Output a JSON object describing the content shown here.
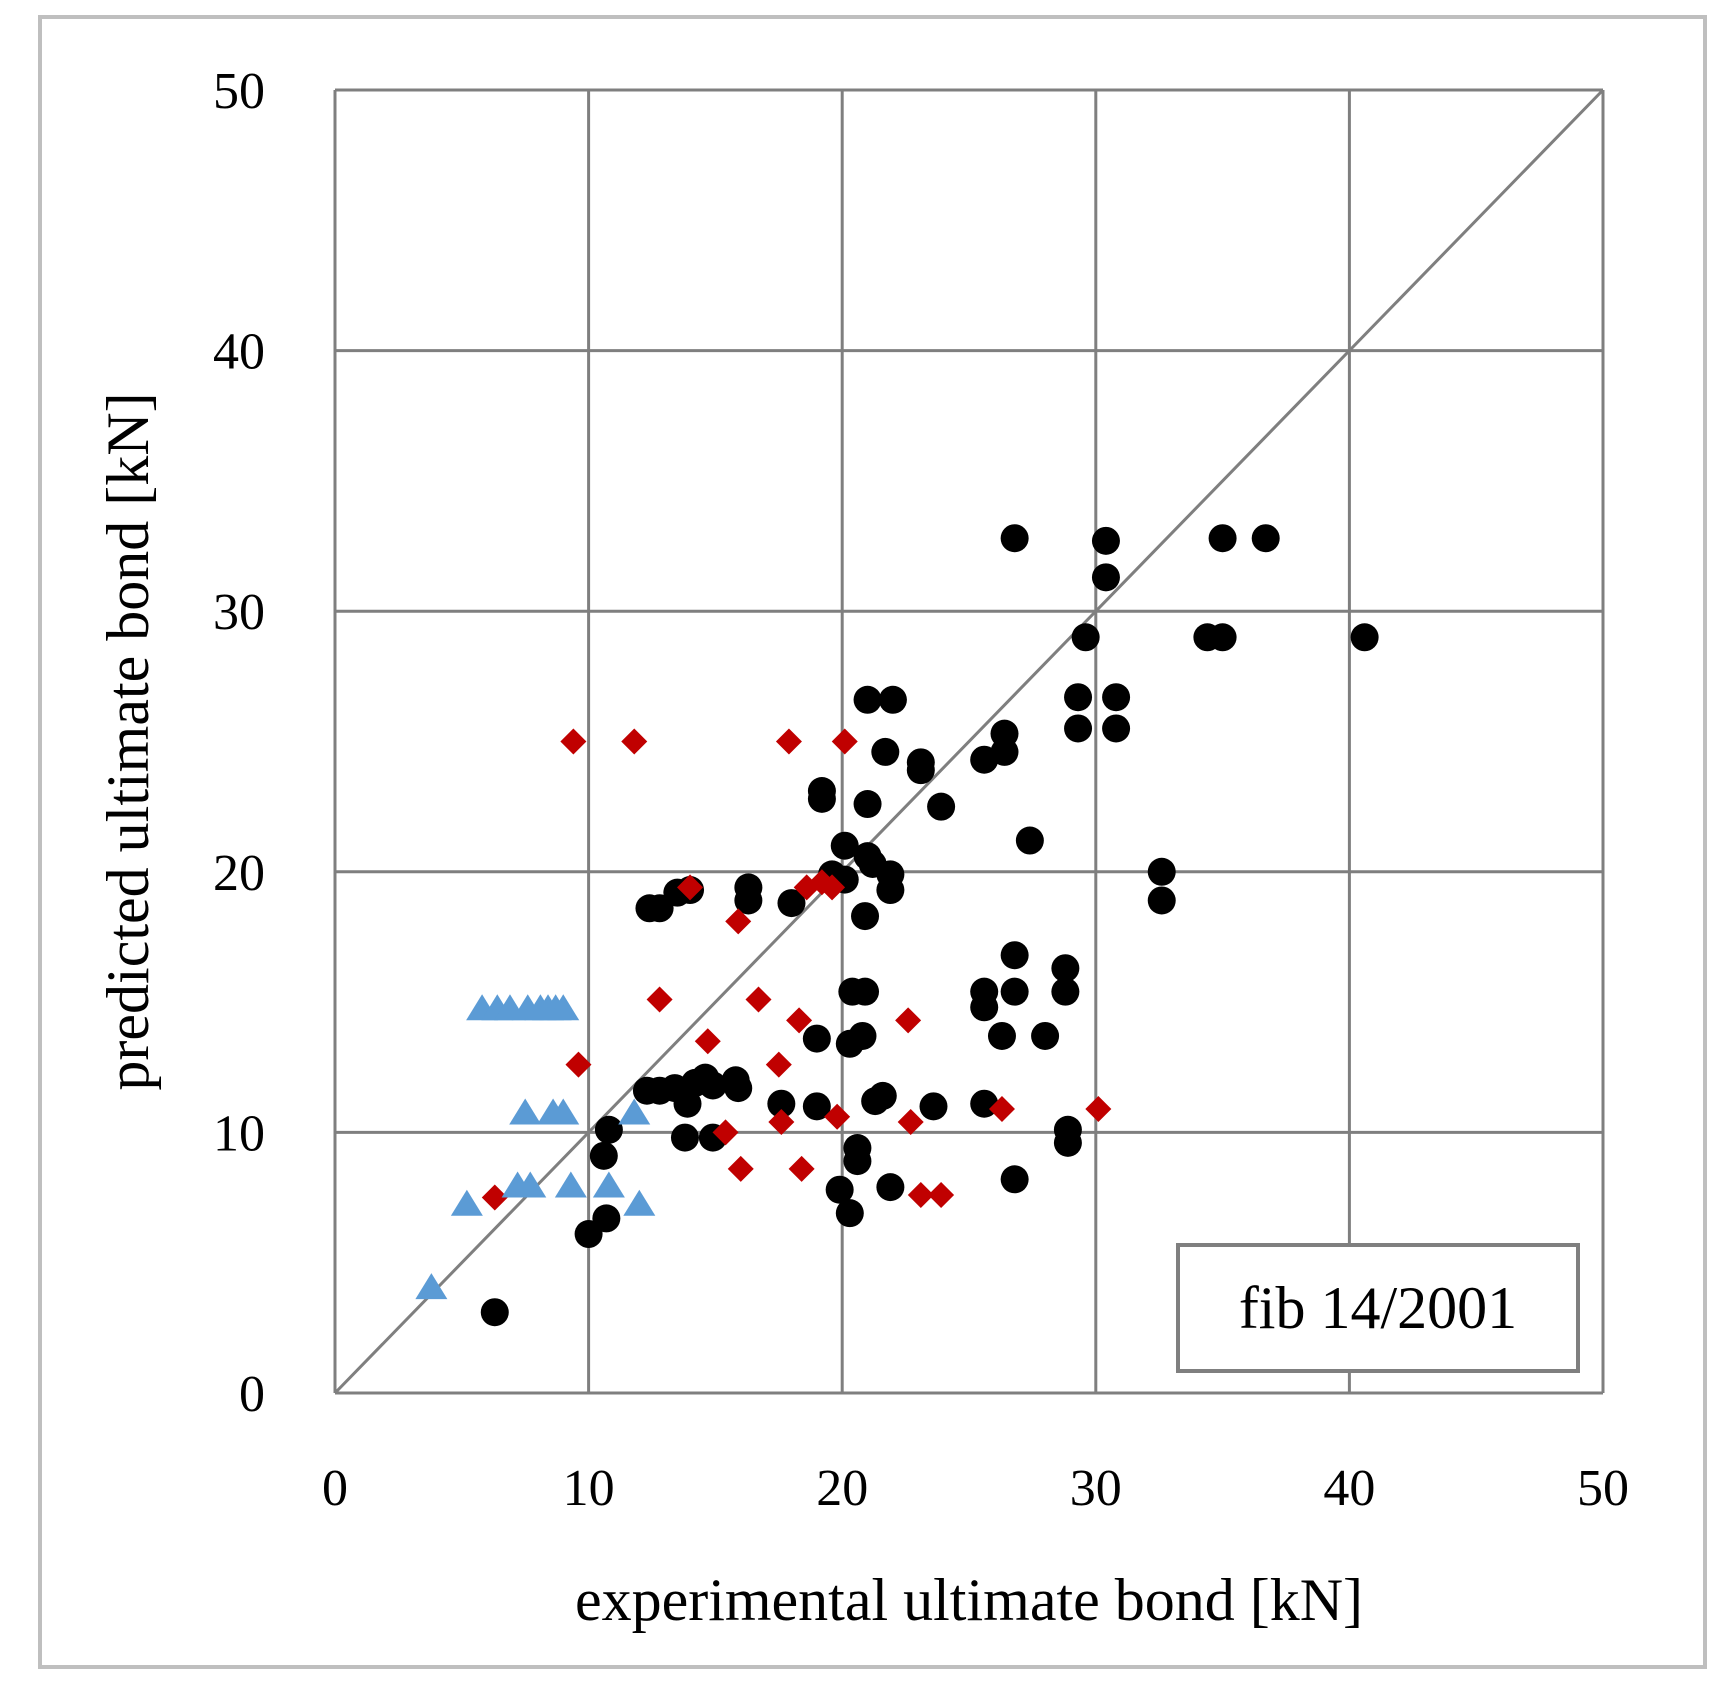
{
  "chart_data": {
    "type": "scatter",
    "title": "",
    "xlabel": "experimental ultimate bond [kN]",
    "ylabel": "predicted ultimate bond [kN]",
    "xlim": [
      0,
      50
    ],
    "ylim": [
      0,
      50
    ],
    "x_ticks": [
      "0",
      "10",
      "20",
      "30",
      "40",
      "50"
    ],
    "y_ticks": [
      "0",
      "10",
      "20",
      "30",
      "40",
      "50"
    ],
    "grid": true,
    "reference_line": {
      "name": "line of equality",
      "from": [
        0,
        0
      ],
      "to": [
        50,
        50
      ]
    },
    "annotation": "fib 14/2001",
    "annotation_position": "bottom-right",
    "colors": {
      "grid": "#7f7f7f",
      "reference_line": "#7f7f7f",
      "frame": "#bfbfbf",
      "annotation_border": "#7f7f7f"
    },
    "series": [
      {
        "name": "black circles",
        "marker": "circle",
        "color": "#000000",
        "points": [
          [
            6.3,
            3.1
          ],
          [
            10.0,
            6.1
          ],
          [
            10.7,
            6.7
          ],
          [
            10.6,
            9.1
          ],
          [
            10.8,
            10.1
          ],
          [
            12.3,
            11.6
          ],
          [
            12.8,
            11.6
          ],
          [
            13.4,
            11.7
          ],
          [
            13.9,
            11.1
          ],
          [
            14.2,
            11.9
          ],
          [
            14.6,
            12.1
          ],
          [
            14.9,
            11.8
          ],
          [
            15.8,
            12.0
          ],
          [
            15.9,
            11.7
          ],
          [
            13.8,
            9.8
          ],
          [
            14.9,
            9.8
          ],
          [
            12.4,
            18.6
          ],
          [
            12.8,
            18.6
          ],
          [
            13.5,
            19.2
          ],
          [
            14.0,
            19.3
          ],
          [
            16.3,
            19.4
          ],
          [
            16.3,
            18.9
          ],
          [
            18.0,
            18.8
          ],
          [
            17.6,
            11.1
          ],
          [
            19.0,
            11.0
          ],
          [
            19.0,
            13.6
          ],
          [
            19.2,
            22.8
          ],
          [
            19.2,
            23.1
          ],
          [
            19.6,
            19.9
          ],
          [
            19.9,
            7.8
          ],
          [
            20.1,
            21.0
          ],
          [
            20.1,
            19.7
          ],
          [
            20.3,
            6.9
          ],
          [
            20.3,
            13.4
          ],
          [
            20.4,
            15.4
          ],
          [
            20.6,
            9.4
          ],
          [
            20.6,
            8.9
          ],
          [
            20.8,
            13.7
          ],
          [
            20.9,
            15.4
          ],
          [
            20.9,
            18.3
          ],
          [
            21.0,
            26.6
          ],
          [
            21.0,
            22.6
          ],
          [
            21.0,
            20.6
          ],
          [
            21.2,
            20.3
          ],
          [
            21.3,
            11.2
          ],
          [
            21.6,
            11.4
          ],
          [
            21.7,
            24.6
          ],
          [
            21.9,
            19.9
          ],
          [
            21.9,
            19.3
          ],
          [
            21.9,
            7.9
          ],
          [
            22.0,
            26.6
          ],
          [
            23.1,
            24.2
          ],
          [
            23.1,
            23.9
          ],
          [
            23.6,
            11.0
          ],
          [
            23.9,
            22.5
          ],
          [
            25.6,
            24.3
          ],
          [
            25.6,
            15.4
          ],
          [
            25.6,
            14.8
          ],
          [
            25.6,
            11.1
          ],
          [
            26.3,
            13.7
          ],
          [
            26.4,
            25.3
          ],
          [
            26.4,
            24.6
          ],
          [
            26.8,
            32.8
          ],
          [
            26.8,
            16.8
          ],
          [
            26.8,
            15.4
          ],
          [
            26.8,
            8.2
          ],
          [
            27.4,
            21.2
          ],
          [
            28.0,
            13.7
          ],
          [
            28.8,
            16.3
          ],
          [
            28.8,
            15.4
          ],
          [
            28.9,
            9.6
          ],
          [
            28.9,
            10.1
          ],
          [
            29.3,
            26.7
          ],
          [
            29.3,
            25.5
          ],
          [
            29.6,
            29.0
          ],
          [
            30.4,
            32.7
          ],
          [
            30.4,
            31.3
          ],
          [
            30.8,
            26.7
          ],
          [
            30.8,
            25.5
          ],
          [
            32.6,
            20.0
          ],
          [
            32.6,
            18.9
          ],
          [
            34.4,
            29.0
          ],
          [
            35.0,
            32.8
          ],
          [
            35.0,
            29.0
          ],
          [
            36.7,
            32.8
          ],
          [
            40.6,
            29.0
          ]
        ]
      },
      {
        "name": "red diamonds",
        "marker": "diamond",
        "color": "#c00000",
        "points": [
          [
            6.3,
            7.5
          ],
          [
            9.4,
            25.0
          ],
          [
            9.6,
            12.6
          ],
          [
            11.8,
            25.0
          ],
          [
            12.8,
            15.1
          ],
          [
            14.0,
            19.4
          ],
          [
            14.7,
            13.5
          ],
          [
            15.4,
            10.0
          ],
          [
            15.9,
            18.1
          ],
          [
            16.0,
            8.6
          ],
          [
            16.7,
            15.1
          ],
          [
            17.5,
            12.6
          ],
          [
            17.6,
            10.4
          ],
          [
            17.9,
            25.0
          ],
          [
            18.3,
            14.3
          ],
          [
            18.4,
            8.6
          ],
          [
            18.6,
            19.4
          ],
          [
            19.2,
            19.6
          ],
          [
            19.6,
            19.4
          ],
          [
            19.8,
            10.6
          ],
          [
            20.1,
            25.0
          ],
          [
            22.6,
            14.3
          ],
          [
            22.7,
            10.4
          ],
          [
            23.1,
            7.6
          ],
          [
            23.9,
            7.6
          ],
          [
            26.3,
            10.9
          ],
          [
            30.1,
            10.9
          ]
        ]
      },
      {
        "name": "blue triangles",
        "marker": "triangle",
        "color": "#5b9bd5",
        "points": [
          [
            3.8,
            4.1
          ],
          [
            5.2,
            7.3
          ],
          [
            5.8,
            14.8
          ],
          [
            6.4,
            14.8
          ],
          [
            6.9,
            14.8
          ],
          [
            7.2,
            8.0
          ],
          [
            7.5,
            10.8
          ],
          [
            7.6,
            14.8
          ],
          [
            7.7,
            8.0
          ],
          [
            8.1,
            14.8
          ],
          [
            8.4,
            14.8
          ],
          [
            8.6,
            10.8
          ],
          [
            8.7,
            14.8
          ],
          [
            9.0,
            14.8
          ],
          [
            9.0,
            10.8
          ],
          [
            9.3,
            8.0
          ],
          [
            10.8,
            8.0
          ],
          [
            11.8,
            10.8
          ],
          [
            12.0,
            7.3
          ]
        ]
      }
    ]
  }
}
